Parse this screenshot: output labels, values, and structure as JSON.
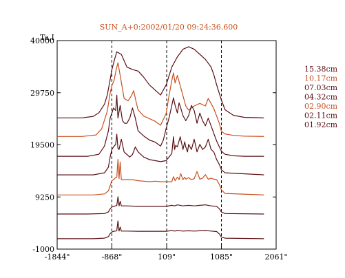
{
  "chart_data": {
    "type": "line",
    "title": "SUN_A+0:2002/01/20 09:24:36.600",
    "ylabel": "Ta,I",
    "xlim": [
      -1844,
      2061
    ],
    "ylim": [
      -1000,
      40000
    ],
    "x_ticks": [
      {
        "label": "-1844\"",
        "value": -1844
      },
      {
        "label": "-868\"",
        "value": -868
      },
      {
        "label": "109\"",
        "value": 109
      },
      {
        "label": "1085\"",
        "value": 1085
      },
      {
        "label": "2061\"",
        "value": 2061
      }
    ],
    "y_ticks": [
      {
        "label": "40000",
        "value": 40000
      },
      {
        "label": "29750",
        "value": 29750
      },
      {
        "label": "19500",
        "value": 19500
      },
      {
        "label": "9250",
        "value": 9250
      },
      {
        "label": "-1000",
        "value": -1000
      }
    ],
    "vlines": [
      -868,
      109,
      1085
    ],
    "legend": "right",
    "colors": {
      "dark": "#5a0f14",
      "orange": "#c8501e",
      "title": "#c8501e"
    },
    "series": [
      {
        "name": "15.38cm",
        "color": "dark",
        "offset": 24800,
        "profile": "p15",
        "x": [
          -1844,
          -1400,
          -1200,
          -1100,
          -1000,
          -950,
          -900,
          -868,
          -820,
          -780,
          -700,
          -600,
          -500,
          -400,
          -300,
          -200,
          -100,
          0,
          50,
          100,
          200,
          300,
          400,
          500,
          600,
          700,
          800,
          900,
          950,
          1000,
          1085,
          1150,
          1300,
          1500,
          1844
        ],
        "y": [
          0,
          0,
          300,
          1000,
          2700,
          4500,
          7500,
          9500,
          11500,
          13000,
          12500,
          10000,
          9500,
          9200,
          8000,
          6500,
          5500,
          4500,
          5500,
          6500,
          10000,
          12000,
          13500,
          14000,
          13500,
          12500,
          11500,
          10000,
          8500,
          6500,
          3500,
          1600,
          500,
          100,
          0
        ]
      },
      {
        "name": "10.17cm",
        "color": "orange",
        "offset": 21150,
        "profile": "p10",
        "x": [
          -1844,
          -1400,
          -1150,
          -1050,
          -950,
          -900,
          -868,
          -830,
          -790,
          -760,
          -720,
          -650,
          -580,
          -520,
          -480,
          -440,
          -400,
          -300,
          -200,
          -100,
          0,
          100,
          150,
          200,
          230,
          260,
          300,
          350,
          400,
          450,
          500,
          600,
          700,
          800,
          850,
          950,
          1000,
          1050,
          1085,
          1150,
          1300,
          1500,
          1844
        ],
        "y": [
          0,
          0,
          300,
          1500,
          5000,
          8500,
          10000,
          11000,
          13200,
          14500,
          12000,
          7500,
          7000,
          8000,
          9000,
          7000,
          5200,
          4000,
          3500,
          3000,
          2200,
          4500,
          8000,
          11000,
          12500,
          10500,
          12000,
          10000,
          8000,
          6000,
          5200,
          6000,
          6500,
          6000,
          7500,
          5500,
          4000,
          2500,
          1000,
          500,
          200,
          50,
          0
        ]
      },
      {
        "name": "07.03cm",
        "color": "dark",
        "offset": 17250,
        "profile": "p07",
        "x": [
          -1844,
          -1300,
          -1100,
          -1000,
          -930,
          -900,
          -868,
          -840,
          -800,
          -780,
          -760,
          -720,
          -680,
          -640,
          -600,
          -550,
          -500,
          -450,
          -400,
          -300,
          -200,
          -100,
          0,
          50,
          100,
          150,
          200,
          230,
          260,
          300,
          330,
          360,
          400,
          450,
          500,
          550,
          600,
          650,
          700,
          750,
          800,
          850,
          900,
          950,
          1000,
          1085,
          1150,
          1300,
          1500,
          1844
        ],
        "y": [
          0,
          0,
          400,
          2000,
          5000,
          7500,
          8500,
          9500,
          9000,
          12000,
          7500,
          10000,
          7000,
          6500,
          6500,
          7500,
          9500,
          7500,
          5000,
          4000,
          3200,
          2800,
          2000,
          3200,
          5500,
          7500,
          10000,
          11500,
          10000,
          8500,
          10500,
          9500,
          8000,
          7000,
          8000,
          10000,
          9000,
          6500,
          8500,
          7000,
          6000,
          7500,
          6000,
          4500,
          3000,
          1000,
          400,
          100,
          0,
          0
        ]
      },
      {
        "name": "04.32cm",
        "color": "dark",
        "offset": 13600,
        "profile": "p04",
        "x": [
          -1844,
          -1200,
          -1000,
          -930,
          -900,
          -868,
          -840,
          -800,
          -780,
          -760,
          -740,
          -700,
          -650,
          -600,
          -550,
          -500,
          -450,
          -400,
          -300,
          -200,
          -100,
          0,
          100,
          150,
          200,
          230,
          250,
          270,
          300,
          350,
          400,
          430,
          450,
          480,
          500,
          550,
          600,
          650,
          700,
          750,
          800,
          850,
          900,
          950,
          1000,
          1050,
          1085,
          1150,
          1844
        ],
        "y": [
          0,
          0,
          400,
          1500,
          3500,
          5000,
          5500,
          6000,
          8000,
          5200,
          5000,
          7000,
          4500,
          4000,
          3500,
          4000,
          5500,
          4500,
          3500,
          3000,
          2800,
          2600,
          2800,
          3500,
          4200,
          7500,
          5000,
          5800,
          5500,
          7500,
          5000,
          6500,
          5500,
          4500,
          6000,
          5000,
          7000,
          4500,
          6000,
          5000,
          5500,
          7000,
          5000,
          4500,
          3000,
          2000,
          1000,
          400,
          0
        ]
      },
      {
        "name": "02.90cm",
        "color": "orange",
        "offset": 9650,
        "profile": "p02",
        "x": [
          -1844,
          -1200,
          -1000,
          -930,
          -900,
          -868,
          -840,
          -820,
          -800,
          -780,
          -760,
          -740,
          -720,
          -700,
          -660,
          -620,
          -560,
          -500,
          -400,
          -300,
          -200,
          -100,
          0,
          100,
          200,
          230,
          260,
          300,
          330,
          360,
          400,
          430,
          450,
          500,
          550,
          600,
          650,
          700,
          750,
          800,
          850,
          900,
          950,
          1000,
          1050,
          1085,
          1150,
          1844
        ],
        "y": [
          0,
          0,
          200,
          800,
          1800,
          2800,
          3000,
          3200,
          3400,
          3500,
          7000,
          3200,
          6500,
          3000,
          3000,
          3000,
          3000,
          3000,
          2800,
          2700,
          2600,
          2700,
          2600,
          2600,
          2600,
          3600,
          2800,
          3500,
          3000,
          4200,
          3000,
          3500,
          3100,
          3400,
          3000,
          3200,
          4600,
          3100,
          3300,
          4000,
          3100,
          3300,
          3100,
          3000,
          2000,
          1000,
          300,
          0
        ]
      },
      {
        "name": "02.11cm",
        "color": "dark",
        "offset": 5900,
        "profile": "p0211",
        "x": [
          -1844,
          -1300,
          -1000,
          -930,
          -900,
          -868,
          -840,
          -800,
          -780,
          -760,
          -740,
          -720,
          -700,
          -650,
          -600,
          -400,
          -200,
          0,
          100,
          200,
          250,
          300,
          400,
          500,
          600,
          700,
          800,
          900,
          1000,
          1050,
          1085,
          1150,
          1844
        ],
        "y": [
          0,
          0,
          100,
          400,
          1000,
          1400,
          1500,
          1600,
          1700,
          3400,
          1600,
          2500,
          1600,
          1600,
          1600,
          1500,
          1500,
          1500,
          1500,
          1700,
          1600,
          1800,
          1600,
          1700,
          1600,
          1700,
          1800,
          1600,
          1500,
          1000,
          400,
          100,
          0
        ]
      },
      {
        "name": "01.92cm",
        "color": "dark",
        "offset": 1050,
        "profile": "p0192",
        "x": [
          -1844,
          -1200,
          -1000,
          -930,
          -900,
          -868,
          -840,
          -800,
          -780,
          -760,
          -740,
          -720,
          -700,
          -650,
          -600,
          -400,
          -200,
          0,
          100,
          200,
          250,
          300,
          400,
          500,
          600,
          700,
          800,
          900,
          1000,
          1050,
          1085,
          1150,
          1844
        ],
        "y": [
          0,
          0,
          100,
          400,
          1000,
          1300,
          1450,
          1500,
          1600,
          3500,
          1500,
          2300,
          1500,
          1500,
          1500,
          1450,
          1450,
          1450,
          1450,
          1600,
          1500,
          1600,
          1500,
          1550,
          1500,
          1550,
          1600,
          1500,
          1400,
          900,
          300,
          100,
          0
        ]
      }
    ]
  }
}
